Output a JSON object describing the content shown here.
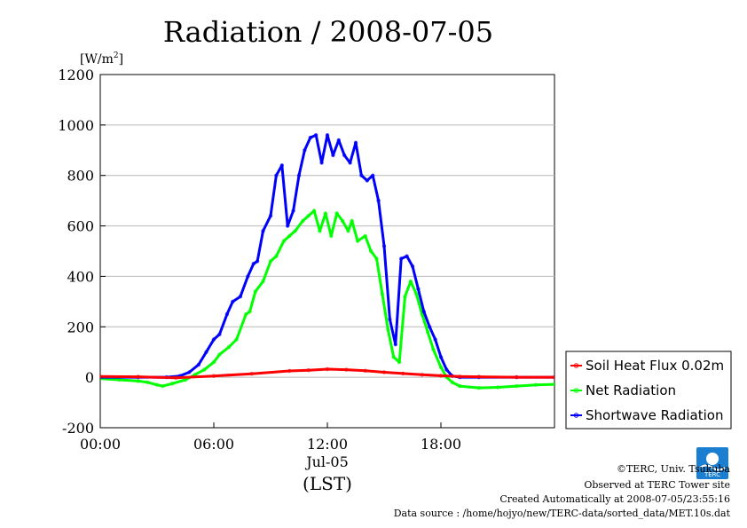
{
  "chart_data": {
    "type": "line",
    "title": "Radiation / 2008-07-05",
    "ylabel": "[W/m",
    "ylabel_sup": "2",
    "ylabel_close": "]",
    "xlabel": "(LST)",
    "x_date_label": "Jul-05",
    "x_ticks": [
      "00:00",
      "06:00",
      "12:00",
      "18:00"
    ],
    "y_ticks": [
      "1200",
      "1000",
      "800",
      "600",
      "400",
      "200",
      "0",
      "-200"
    ],
    "xlim": [
      0,
      24
    ],
    "ylim": [
      -200,
      1200
    ],
    "grid": true,
    "legend_position": "right",
    "series": [
      {
        "name": "Soil Heat Flux 0.02m",
        "color": "#ff0000",
        "x": [
          0,
          2,
          4,
          6,
          8,
          10,
          11,
          12,
          13,
          14,
          15,
          16,
          17,
          18,
          19,
          20,
          22,
          24
        ],
        "values": [
          3,
          2,
          -2,
          5,
          14,
          25,
          28,
          32,
          30,
          26,
          20,
          15,
          10,
          6,
          3,
          2,
          0,
          0
        ]
      },
      {
        "name": "Net Radiation",
        "color": "#00ff00",
        "x": [
          0,
          1,
          2,
          2.5,
          3,
          3.3,
          3.8,
          4.5,
          5,
          5.5,
          6,
          6.3,
          6.8,
          7.2,
          7.7,
          7.9,
          8.2,
          8.6,
          9,
          9.3,
          9.7,
          10,
          10.3,
          10.7,
          11,
          11.3,
          11.6,
          11.9,
          12.2,
          12.5,
          12.8,
          13.1,
          13.3,
          13.6,
          14,
          14.3,
          14.6,
          14.9,
          15.2,
          15.5,
          15.8,
          16.1,
          16.4,
          16.7,
          17,
          17.3,
          17.6,
          18,
          18.3,
          18.6,
          19,
          20,
          21,
          22,
          23,
          24
        ],
        "values": [
          -5,
          -10,
          -15,
          -20,
          -30,
          -35,
          -25,
          -10,
          10,
          30,
          60,
          90,
          120,
          150,
          250,
          260,
          340,
          380,
          460,
          480,
          540,
          560,
          580,
          620,
          640,
          660,
          580,
          650,
          560,
          650,
          620,
          580,
          620,
          540,
          560,
          500,
          470,
          330,
          190,
          80,
          60,
          320,
          380,
          330,
          250,
          180,
          110,
          40,
          0,
          -20,
          -35,
          -42,
          -40,
          -35,
          -30,
          -28
        ]
      },
      {
        "name": "Shortwave Radiation",
        "color": "#0000ff",
        "x": [
          0,
          2,
          3.5,
          4.2,
          4.7,
          5.2,
          5.6,
          6,
          6.3,
          6.7,
          7,
          7.4,
          7.8,
          8.1,
          8.3,
          8.6,
          9,
          9.3,
          9.6,
          9.9,
          10.2,
          10.5,
          10.8,
          11.1,
          11.4,
          11.7,
          12,
          12.3,
          12.6,
          12.9,
          13.2,
          13.5,
          13.8,
          14.1,
          14.4,
          14.7,
          15,
          15.3,
          15.6,
          15.9,
          16.2,
          16.5,
          16.8,
          17.1,
          17.4,
          17.7,
          18,
          18.3,
          18.6,
          19,
          20,
          22,
          24
        ],
        "values": [
          0,
          0,
          0,
          5,
          20,
          50,
          100,
          150,
          170,
          250,
          300,
          320,
          400,
          450,
          460,
          580,
          640,
          800,
          840,
          600,
          660,
          800,
          900,
          950,
          960,
          850,
          960,
          880,
          940,
          880,
          850,
          930,
          800,
          780,
          800,
          700,
          520,
          230,
          130,
          470,
          480,
          440,
          350,
          260,
          200,
          150,
          80,
          30,
          5,
          0,
          0,
          0,
          0
        ]
      }
    ]
  },
  "credits": {
    "copyright": "©TERC, Univ. Tsukuba",
    "observed": "Observed at TERC Tower site",
    "created": "Created Automatically at 2008-07-05/23:55:16",
    "source": "Data source : /home/hojyo/new/TERC-data/sorted_data/MET.10s.dat"
  },
  "logo": {
    "text": "TERC"
  }
}
